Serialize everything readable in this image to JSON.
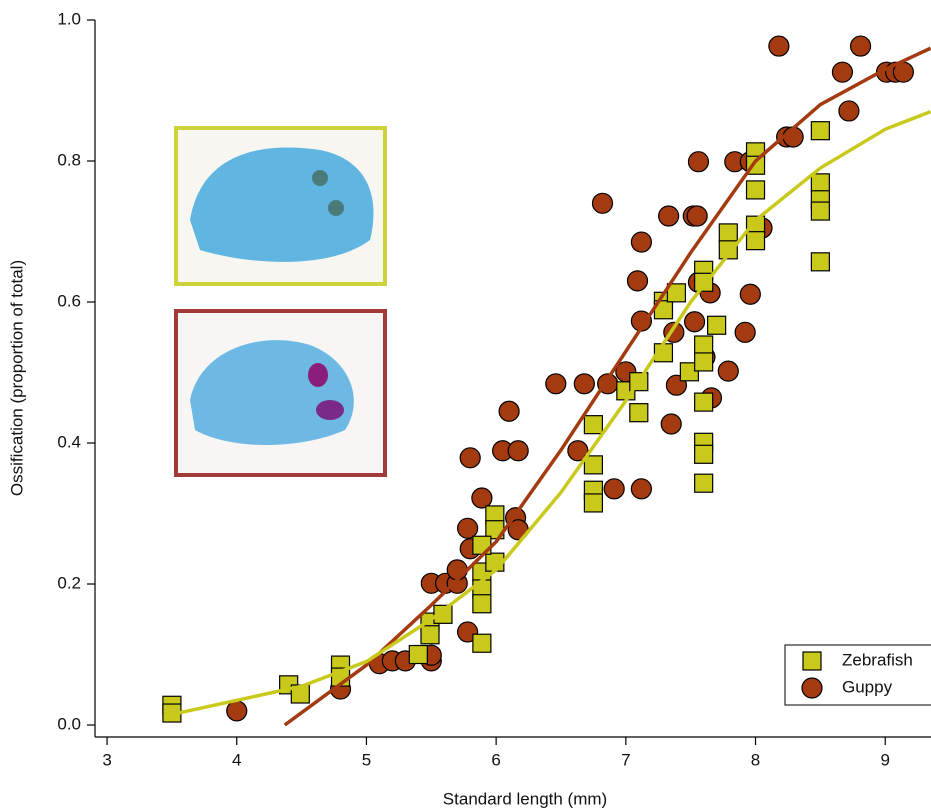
{
  "chart_data": {
    "type": "scatter",
    "xlabel": "Standard length (mm)",
    "ylabel": "Ossification (proportion of total)",
    "xlim": [
      2.907,
      9.353
    ],
    "ylim": [
      -0.017,
      1.0
    ],
    "xticks": [
      3,
      4,
      5,
      6,
      7,
      8,
      9
    ],
    "yticks": [
      {
        "value": 0,
        "label": "0.0"
      },
      0.2,
      0.4,
      0.6,
      0.8,
      {
        "value": 1,
        "label": "1.0"
      }
    ],
    "legend": "lower right",
    "series": [
      {
        "name": "Guppy",
        "color": "#a33a10",
        "marker": "circle",
        "x": [
          4.0,
          4.8,
          5.1,
          5.2,
          5.3,
          5.5,
          5.5,
          5.5,
          5.61,
          5.7,
          5.7,
          5.78,
          5.78,
          5.8,
          5.8,
          5.89,
          6.05,
          6.1,
          6.15,
          6.17,
          6.17,
          6.46,
          6.63,
          6.68,
          6.82,
          6.86,
          6.91,
          7.0,
          7.09,
          7.12,
          7.12,
          7.12,
          7.33,
          7.35,
          7.37,
          7.39,
          7.52,
          7.55,
          7.53,
          7.56,
          7.56,
          7.61,
          7.65,
          7.66,
          7.79,
          7.84,
          7.92,
          7.96,
          7.96,
          8.05,
          8.18,
          8.24,
          8.29,
          8.67,
          8.72,
          8.81,
          9.01,
          9.08,
          9.14
        ],
        "values": [
          0.02,
          0.051,
          0.087,
          0.091,
          0.091,
          0.201,
          0.091,
          0.099,
          0.201,
          0.201,
          0.22,
          0.279,
          0.132,
          0.379,
          0.25,
          0.322,
          0.389,
          0.445,
          0.294,
          0.389,
          0.277,
          0.484,
          0.389,
          0.484,
          0.74,
          0.484,
          0.335,
          0.501,
          0.63,
          0.573,
          0.685,
          0.335,
          0.722,
          0.427,
          0.557,
          0.482,
          0.722,
          0.722,
          0.572,
          0.799,
          0.628,
          0.522,
          0.613,
          0.464,
          0.502,
          0.799,
          0.557,
          0.611,
          0.799,
          0.705,
          0.963,
          0.834,
          0.834,
          0.926,
          0.871,
          0.963,
          0.926,
          0.926,
          0.926
        ],
        "fit": {
          "x": [
            4.37,
            5.0,
            5.5,
            6.0,
            6.5,
            7.0,
            7.5,
            8.0,
            8.5,
            9.0,
            9.35
          ],
          "values": [
            0.0,
            0.085,
            0.17,
            0.26,
            0.39,
            0.53,
            0.67,
            0.8,
            0.88,
            0.93,
            0.96
          ]
        }
      },
      {
        "name": "Zebrafish",
        "color": "#c9c91c",
        "marker": "square",
        "x": [
          3.5,
          3.5,
          4.4,
          4.49,
          4.8,
          4.8,
          5.4,
          5.49,
          5.49,
          5.59,
          5.89,
          5.89,
          5.89,
          5.89,
          5.99,
          5.99,
          5.99,
          5.89,
          6.75,
          6.75,
          6.75,
          6.75,
          7.0,
          7.1,
          7.1,
          7.29,
          7.29,
          7.29,
          7.39,
          7.49,
          7.6,
          7.6,
          7.6,
          7.6,
          7.6,
          7.6,
          7.6,
          7.6,
          7.7,
          7.79,
          7.79,
          8.0,
          8.0,
          8.0,
          8.0,
          8.0,
          8.5,
          8.5,
          8.5,
          8.5,
          8.5
        ],
        "values": [
          0.028,
          0.017,
          0.057,
          0.044,
          0.085,
          0.068,
          0.1,
          0.146,
          0.128,
          0.157,
          0.217,
          0.193,
          0.172,
          0.116,
          0.298,
          0.277,
          0.231,
          0.255,
          0.426,
          0.369,
          0.333,
          0.315,
          0.474,
          0.487,
          0.443,
          0.601,
          0.589,
          0.528,
          0.613,
          0.501,
          0.645,
          0.628,
          0.539,
          0.515,
          0.458,
          0.401,
          0.384,
          0.343,
          0.567,
          0.698,
          0.674,
          0.813,
          0.794,
          0.759,
          0.709,
          0.687,
          0.843,
          0.769,
          0.745,
          0.729,
          0.657
        ],
        "fit": {
          "x": [
            3.5,
            4.0,
            4.5,
            5.0,
            5.5,
            6.0,
            6.5,
            7.0,
            7.5,
            8.0,
            8.5,
            9.0,
            9.35
          ],
          "values": [
            0.015,
            0.035,
            0.055,
            0.09,
            0.15,
            0.22,
            0.33,
            0.46,
            0.6,
            0.716,
            0.79,
            0.845,
            0.87
          ]
        }
      }
    ]
  }
}
